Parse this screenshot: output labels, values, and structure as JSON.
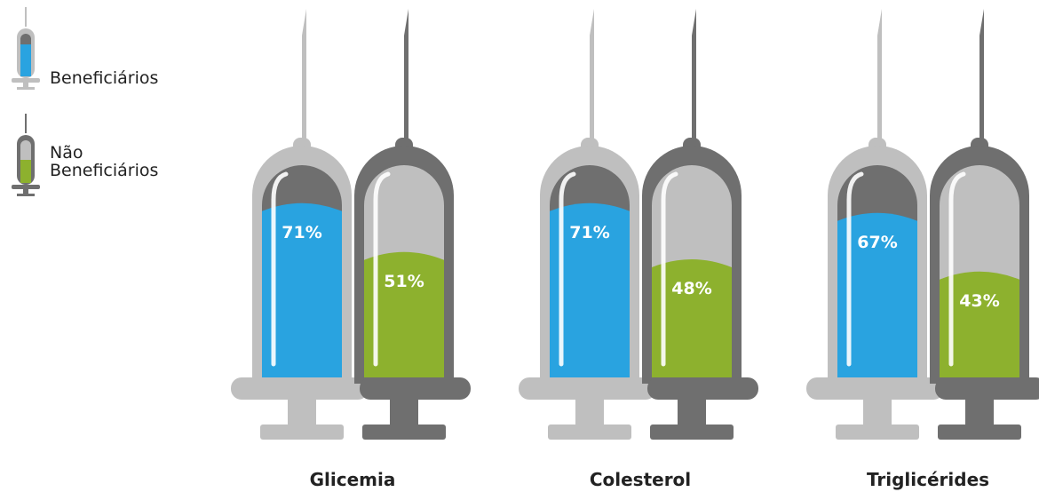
{
  "chart_data": {
    "type": "syringe",
    "categories": [
      "Glicemia",
      "Colesterol",
      "Triglicérides"
    ],
    "series": [
      {
        "name": "Beneficiários",
        "color": "#29a3e0",
        "values": [
          71,
          71,
          67
        ],
        "value_labels": [
          "71%",
          "71%",
          "67%"
        ]
      },
      {
        "name": "Não Beneficiários",
        "color": "#8db12e",
        "values": [
          51,
          48,
          43
        ],
        "value_labels": [
          "51%",
          "48%",
          "43%"
        ]
      }
    ]
  }
}
